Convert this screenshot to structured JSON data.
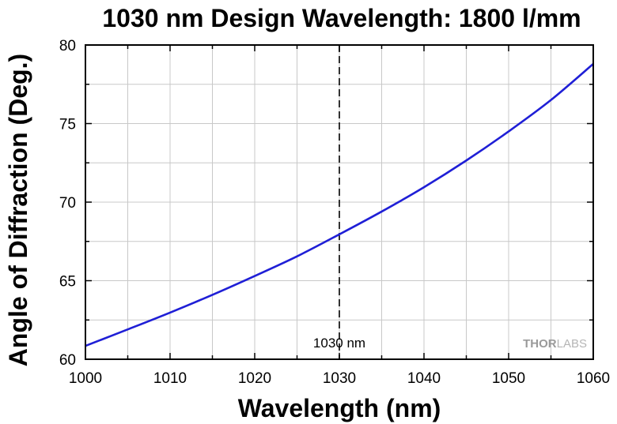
{
  "chart_data": {
    "type": "line",
    "title": "1030 nm Design Wavelength: 1800 l/mm",
    "xlabel": "Wavelength (nm)",
    "ylabel": "Angle of Diffraction (Deg.)",
    "xlim": [
      1000,
      1060
    ],
    "ylim": [
      60,
      80
    ],
    "xticks": [
      1000,
      1010,
      1020,
      1030,
      1040,
      1050,
      1060
    ],
    "yticks": [
      60,
      65,
      70,
      75,
      80
    ],
    "grid": true,
    "series": [
      {
        "color": "#1f1fd6",
        "x": [
          1000,
          1005,
          1010,
          1015,
          1020,
          1025,
          1030,
          1035,
          1040,
          1045,
          1050,
          1055,
          1060
        ],
        "y": [
          60.85,
          61.9,
          62.97,
          64.1,
          65.3,
          66.55,
          67.95,
          69.4,
          70.95,
          72.65,
          74.5,
          76.5,
          78.8
        ]
      }
    ],
    "annotations": [
      {
        "type": "vline",
        "x": 1030,
        "label": "1030 nm",
        "style": "dashed"
      }
    ],
    "watermark": {
      "part1": "THOR",
      "part2": "LABS"
    }
  }
}
